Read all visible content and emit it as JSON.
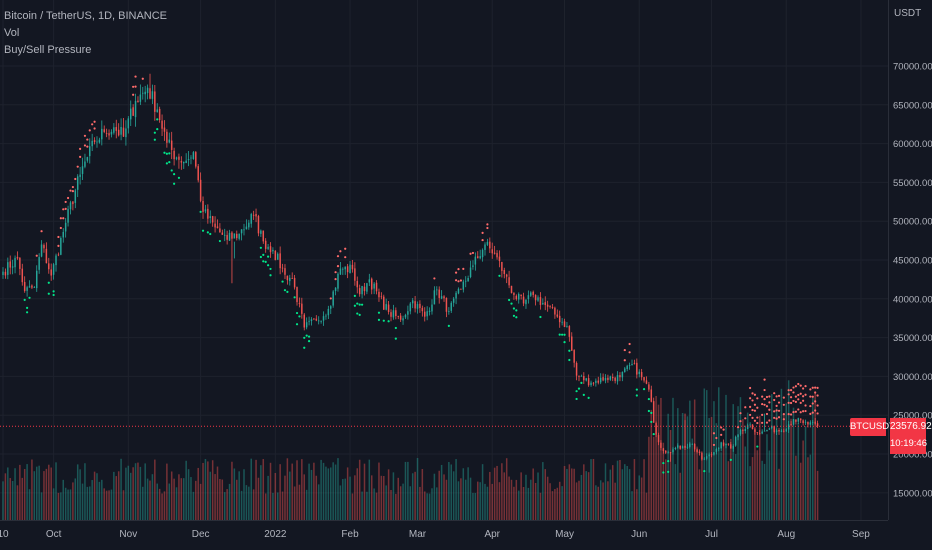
{
  "legend": {
    "symbol": "Bitcoin / TetherUS, 1D, BINANCE",
    "indicator_1": "Vol",
    "indicator_2": "Buy/Sell Pressure"
  },
  "price_scale": {
    "unit": "USDT"
  },
  "last_price": {
    "symbol": "BTCUSDT",
    "price": "23576.92",
    "countdown": "10:19:46"
  },
  "colors": {
    "background": "#131722",
    "grid": "#1e222d",
    "up": "#26a69a",
    "down": "#ef5350",
    "dot_up": "#00e68a",
    "dot_down": "#ff6b6b",
    "price_line": "#f23645",
    "text": "#b2b5be"
  },
  "chart_data": {
    "type": "candlestick",
    "title": "Bitcoin / TetherUS, 1D, BINANCE",
    "ylabel": "USDT",
    "ylim": [
      11500,
      78500
    ],
    "y_ticks": [
      {
        "value": 15000,
        "label": "15000.00"
      },
      {
        "value": 20000,
        "label": "20000.00"
      },
      {
        "value": 25000,
        "label": "25000.00"
      },
      {
        "value": 30000,
        "label": "30000.00"
      },
      {
        "value": 35000,
        "label": "35000.00"
      },
      {
        "value": 40000,
        "label": "40000.00"
      },
      {
        "value": 45000,
        "label": "45000.00"
      },
      {
        "value": 50000,
        "label": "50000.00"
      },
      {
        "value": 55000,
        "label": "55000.00"
      },
      {
        "value": 60000,
        "label": "60000.00"
      },
      {
        "value": 65000,
        "label": "65000.00"
      },
      {
        "value": 70000,
        "label": "70000.00"
      }
    ],
    "x_ticks": [
      {
        "day": 0,
        "label": "10"
      },
      {
        "day": 21,
        "label": "Oct"
      },
      {
        "day": 52,
        "label": "Nov"
      },
      {
        "day": 82,
        "label": "Dec"
      },
      {
        "day": 113,
        "label": "2022"
      },
      {
        "day": 144,
        "label": "Feb"
      },
      {
        "day": 172,
        "label": "Mar"
      },
      {
        "day": 203,
        "label": "Apr"
      },
      {
        "day": 233,
        "label": "May"
      },
      {
        "day": 264,
        "label": "Jun"
      },
      {
        "day": 294,
        "label": "Jul"
      },
      {
        "day": 325,
        "label": "Aug"
      },
      {
        "day": 356,
        "label": "Sep"
      }
    ],
    "close_anchors": [
      [
        0,
        43500
      ],
      [
        6,
        45200
      ],
      [
        9,
        41000
      ],
      [
        13,
        41500
      ],
      [
        16,
        47000
      ],
      [
        20,
        43000
      ],
      [
        26,
        49800
      ],
      [
        32,
        56000
      ],
      [
        38,
        60200
      ],
      [
        42,
        61500
      ],
      [
        46,
        62100
      ],
      [
        50,
        60900
      ],
      [
        55,
        65500
      ],
      [
        60,
        67200
      ],
      [
        64,
        64400
      ],
      [
        68,
        60100
      ],
      [
        72,
        58200
      ],
      [
        76,
        57800
      ],
      [
        79,
        58900
      ],
      [
        83,
        51200
      ],
      [
        88,
        49200
      ],
      [
        93,
        47600
      ],
      [
        98,
        48400
      ],
      [
        104,
        50800
      ],
      [
        108,
        47400
      ],
      [
        112,
        46300
      ],
      [
        117,
        43100
      ],
      [
        120,
        42600
      ],
      [
        125,
        36300
      ],
      [
        130,
        37200
      ],
      [
        135,
        38700
      ],
      [
        140,
        43900
      ],
      [
        145,
        43800
      ],
      [
        148,
        40600
      ],
      [
        152,
        42500
      ],
      [
        156,
        40200
      ],
      [
        160,
        38300
      ],
      [
        165,
        37300
      ],
      [
        170,
        39800
      ],
      [
        175,
        37700
      ],
      [
        180,
        41200
      ],
      [
        185,
        38400
      ],
      [
        190,
        41200
      ],
      [
        195,
        44300
      ],
      [
        200,
        47000
      ],
      [
        204,
        45800
      ],
      [
        208,
        43200
      ],
      [
        212,
        40500
      ],
      [
        216,
        39400
      ],
      [
        220,
        40500
      ],
      [
        225,
        39200
      ],
      [
        230,
        37700
      ],
      [
        234,
        36500
      ],
      [
        238,
        30100
      ],
      [
        244,
        29200
      ],
      [
        250,
        29800
      ],
      [
        256,
        29900
      ],
      [
        261,
        31600
      ],
      [
        265,
        29900
      ],
      [
        268,
        28300
      ],
      [
        271,
        22500
      ],
      [
        274,
        20400
      ],
      [
        278,
        20600
      ],
      [
        282,
        21000
      ],
      [
        286,
        21300
      ],
      [
        290,
        19300
      ],
      [
        294,
        19900
      ],
      [
        298,
        21500
      ],
      [
        302,
        20700
      ],
      [
        306,
        23100
      ],
      [
        310,
        23800
      ],
      [
        314,
        22600
      ],
      [
        318,
        23300
      ],
      [
        323,
        23000
      ],
      [
        328,
        24500
      ],
      [
        332,
        24000
      ],
      [
        338,
        23576.92
      ]
    ],
    "spike_highs": [
      [
        61,
        69000
      ],
      [
        84,
        52100
      ],
      [
        96,
        45200
      ],
      [
        283,
        25200
      ],
      [
        316,
        25200
      ]
    ],
    "spike_lows": [
      [
        95,
        42000
      ],
      [
        277,
        19000
      ],
      [
        293,
        17600
      ]
    ],
    "volume_note": "Daily volume histogram drawn along the bottom of the price pane",
    "markers": "Buy/Sell Pressure dots: green below candles in declines, red above candles in rallies",
    "last_price": 23576.92
  }
}
